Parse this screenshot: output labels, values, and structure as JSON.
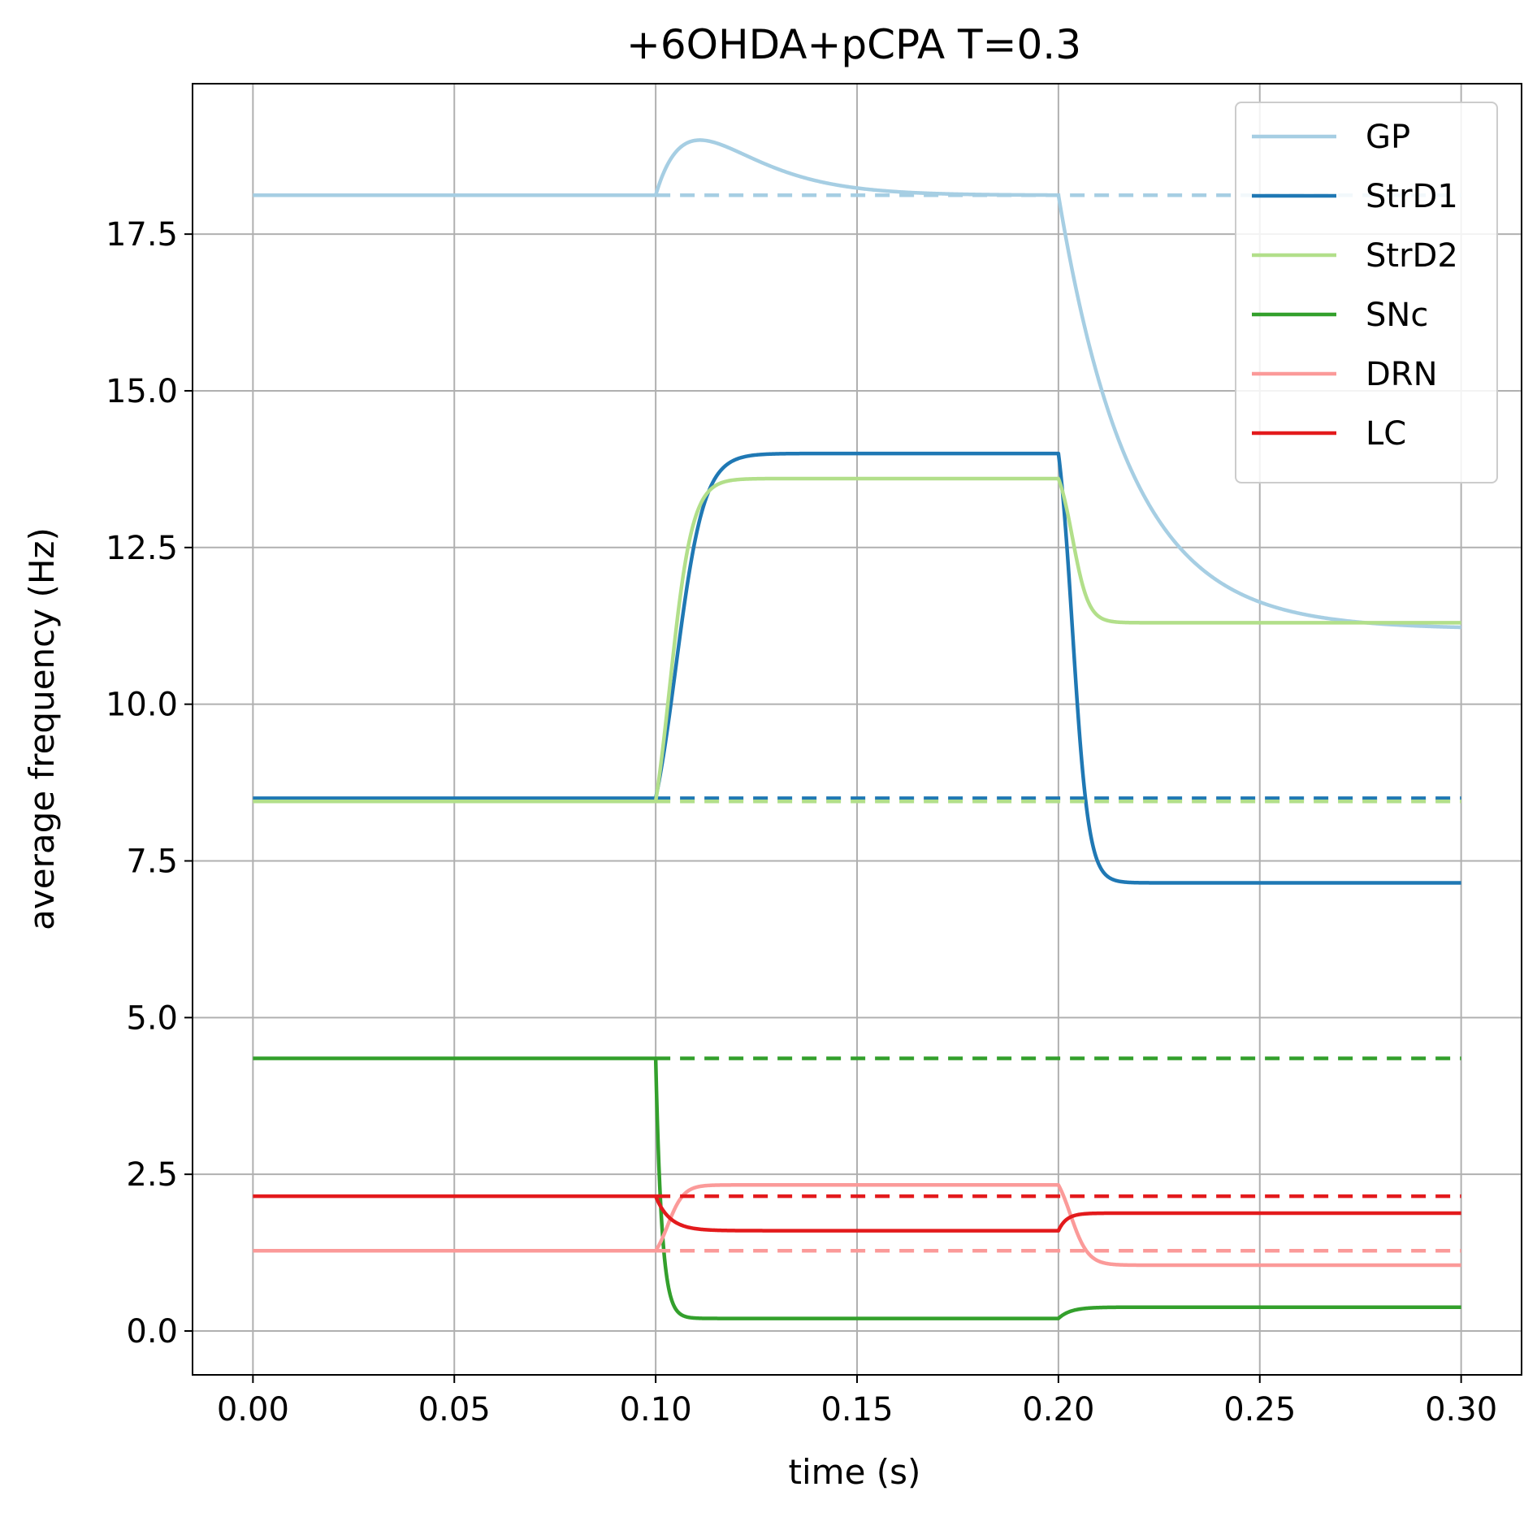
{
  "chart_data": {
    "type": "line",
    "title": "+6OHDA+pCPA T=0.3",
    "xlabel": "time (s)",
    "ylabel": "average frequency (Hz)",
    "xlim": [
      -0.015,
      0.315
    ],
    "ylim": [
      -0.7,
      19.9
    ],
    "xticks": [
      0.0,
      0.05,
      0.1,
      0.15,
      0.2,
      0.25,
      0.3
    ],
    "xtick_labels": [
      "0.00",
      "0.05",
      "0.10",
      "0.15",
      "0.20",
      "0.25",
      "0.30"
    ],
    "yticks": [
      0.0,
      2.5,
      5.0,
      7.5,
      10.0,
      12.5,
      15.0,
      17.5
    ],
    "ytick_labels": [
      "0.0",
      "2.5",
      "5.0",
      "7.5",
      "10.0",
      "12.5",
      "15.0",
      "17.5"
    ],
    "grid": true,
    "legend_position": "top-right",
    "stimulus_on": 0.1,
    "stimulus_off": 0.2,
    "x_end": 0.3,
    "series": [
      {
        "name": "GP",
        "color": "#a6cee3",
        "baseline": 18.12,
        "phase2": "peak",
        "peak": 19.0,
        "peak_time": 0.111,
        "p2_end": 18.12,
        "p3_end": 11.2,
        "tau3": 0.018,
        "dashed_baseline": true
      },
      {
        "name": "StrD1",
        "color": "#1f78b4",
        "baseline": 8.5,
        "phase2": "sigmoid",
        "p2_end": 14.0,
        "tau2": 0.0035,
        "delay2": 0.005,
        "p3_end": 7.15,
        "tau3": 0.002,
        "delay3": 0.0035,
        "dashed_baseline": true
      },
      {
        "name": "StrD2",
        "color": "#b2df8a",
        "baseline": 8.45,
        "phase2": "sigmoid",
        "p2_end": 13.6,
        "tau2": 0.0028,
        "delay2": 0.0035,
        "p3_end": 11.3,
        "tau3": 0.002,
        "delay3": 0.0035,
        "dashed_baseline": true
      },
      {
        "name": "SNc",
        "color": "#33a02c",
        "baseline": 4.35,
        "phase2": "exp",
        "p2_end": 0.2,
        "tau2": 0.0015,
        "p3_end": 0.38,
        "tau3": 0.003,
        "dashed_baseline": true
      },
      {
        "name": "DRN",
        "color": "#fb9a99",
        "baseline": 1.28,
        "phase2": "sigmoid",
        "p2_end": 2.33,
        "tau2": 0.002,
        "delay2": 0.003,
        "p3_end": 1.05,
        "tau3": 0.0022,
        "delay3": 0.003,
        "dashed_baseline": true
      },
      {
        "name": "LC",
        "color": "#e31a1c",
        "baseline": 2.15,
        "phase2": "exp",
        "p2_end": 1.6,
        "tau2": 0.0035,
        "p3_end": 1.88,
        "tau3": 0.002,
        "dashed_baseline": true
      }
    ]
  }
}
